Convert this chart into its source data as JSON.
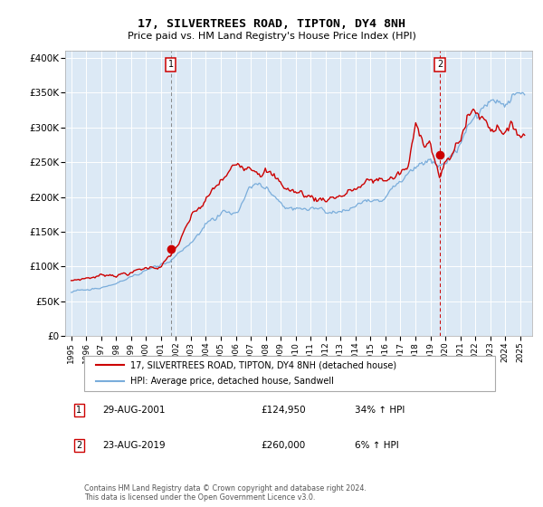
{
  "title": "17, SILVERTREES ROAD, TIPTON, DY4 8NH",
  "subtitle": "Price paid vs. HM Land Registry's House Price Index (HPI)",
  "bg_color": "#dce9f5",
  "red_line_label": "17, SILVERTREES ROAD, TIPTON, DY4 8NH (detached house)",
  "blue_line_label": "HPI: Average price, detached house, Sandwell",
  "ann1_label": "1",
  "ann1_date": "29-AUG-2001",
  "ann1_price": "£124,950",
  "ann1_pct": "34% ↑ HPI",
  "ann1_x": 2001.65,
  "ann1_y": 124950,
  "ann2_label": "2",
  "ann2_date": "23-AUG-2019",
  "ann2_price": "£260,000",
  "ann2_pct": "6% ↑ HPI",
  "ann2_x": 2019.64,
  "ann2_y": 260000,
  "ylim": [
    0,
    410000
  ],
  "yticks": [
    0,
    50000,
    100000,
    150000,
    200000,
    250000,
    300000,
    350000,
    400000
  ],
  "ytick_labels": [
    "£0",
    "£50K",
    "£100K",
    "£150K",
    "£200K",
    "£250K",
    "£300K",
    "£350K",
    "£400K"
  ],
  "xlim_left": 1994.6,
  "xlim_right": 2025.8,
  "footer": "Contains HM Land Registry data © Crown copyright and database right 2024.\nThis data is licensed under the Open Government Licence v3.0.",
  "red_color": "#cc0000",
  "blue_color": "#7aaddb"
}
